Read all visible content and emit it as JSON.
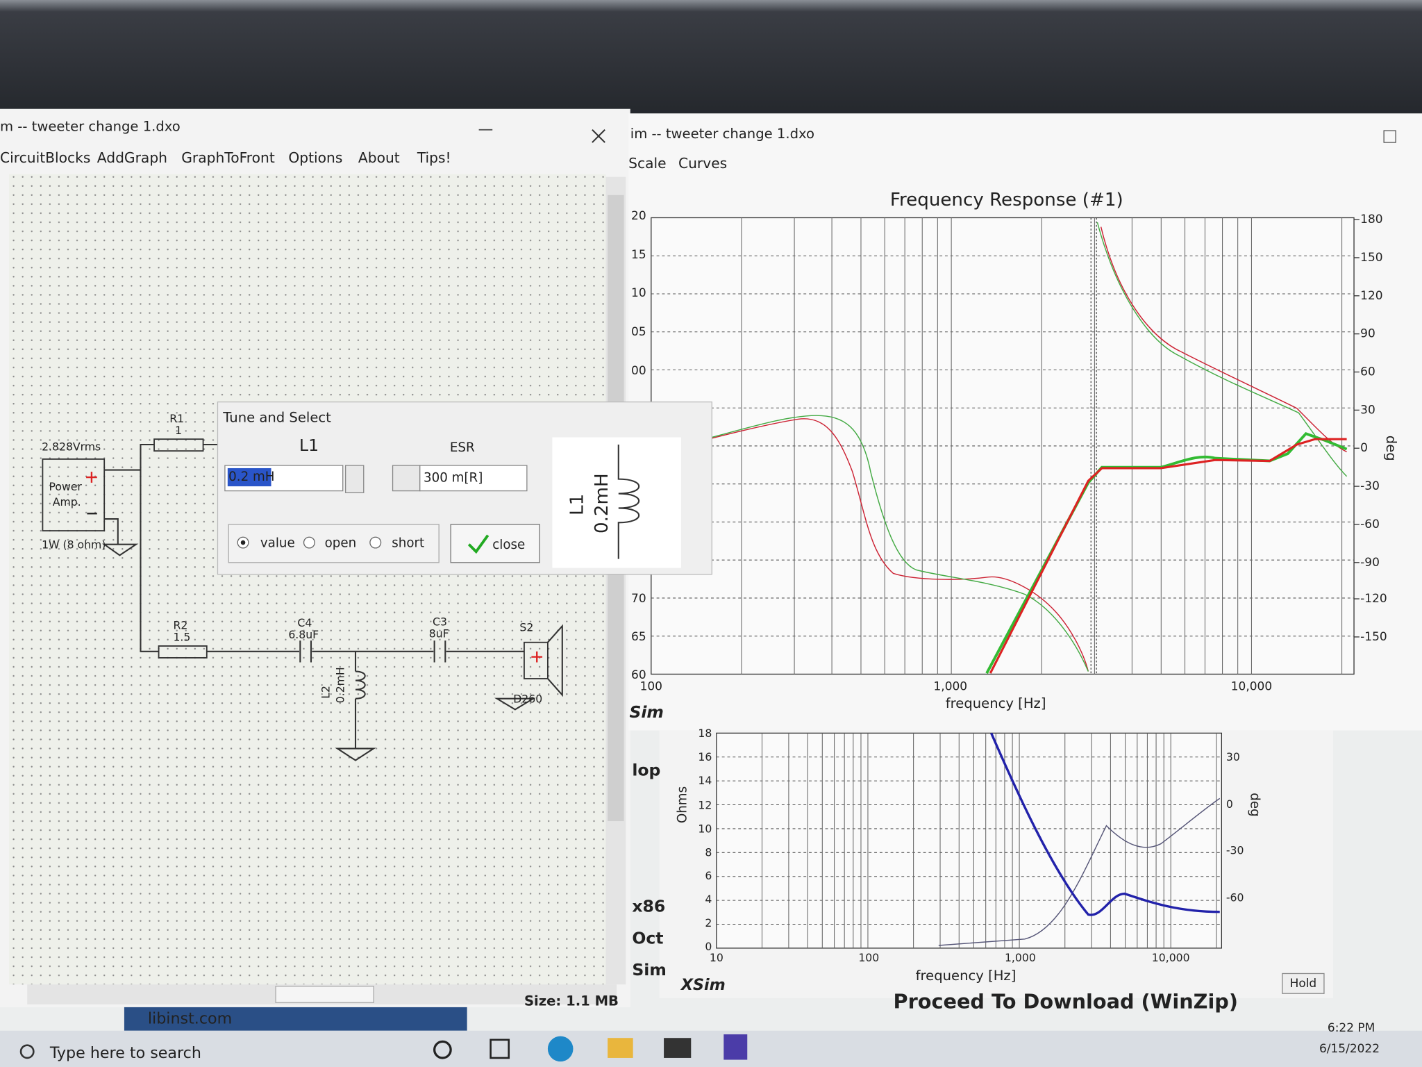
{
  "left_window": {
    "title": "m -- tweeter change 1.dxo",
    "menu": [
      "CircuitBlocks",
      "AddGraph",
      "GraphToFront",
      "Options",
      "About",
      "Tips!"
    ]
  },
  "schematic": {
    "source": {
      "voltage": "2.828Vrms",
      "label": [
        "Power",
        "Amp."
      ],
      "rating": "1W (8 ohm)"
    },
    "r1": {
      "name": "R1",
      "value": "1"
    },
    "r2": {
      "name": "R2",
      "value": "1.5"
    },
    "c4": {
      "name": "C4",
      "value": "6.8uF"
    },
    "c3": {
      "name": "C3",
      "value": "8uF"
    },
    "l2": {
      "name": "L2",
      "value": "0.2mH"
    },
    "s2": {
      "name": "S2",
      "model": "D260"
    }
  },
  "tune_dialog": {
    "title": "Tune and Select",
    "part": "L1",
    "esr_label": "ESR",
    "value_input": "0.2 mH",
    "esr_input": "300 m[R]",
    "options": [
      "value",
      "open",
      "short"
    ],
    "close": "close",
    "symbol": {
      "name": "L1",
      "value": "0.2mH"
    }
  },
  "right_window": {
    "title": "im -- tweeter change 1.dxo",
    "menu": [
      "Scale",
      "Curves"
    ],
    "status": "Sim"
  },
  "frequency_graph": {
    "title": "Frequency Response (#1)",
    "x_label": "frequency [Hz]",
    "x_ticks": [
      "100",
      "1,000",
      "10,000"
    ],
    "y_ticks": [
      "20",
      "15",
      "10",
      "05",
      "00",
      "70",
      "65",
      "60"
    ],
    "y2_ticks": [
      "180",
      "150",
      "120",
      "90",
      "60",
      "30",
      "0",
      "-30",
      "-60",
      "-90",
      "-120",
      "-150"
    ],
    "y2_label": "deg"
  },
  "impedance_graph": {
    "y_ticks": [
      "18",
      "16",
      "14",
      "12",
      "10",
      "8",
      "6",
      "4",
      "2",
      "0"
    ],
    "y_label": "Ohms",
    "y2_ticks": [
      "30",
      "0",
      "-30",
      "-60"
    ],
    "y2_label": "deg",
    "x_ticks": [
      "10",
      "100",
      "1,000",
      "10,000"
    ],
    "x_label": "frequency [Hz]",
    "brand": "XSim",
    "hold": "Hold"
  },
  "background": {
    "side_text": [
      "lop",
      "x86",
      "Oct",
      "Sim"
    ],
    "site": "libinst.com",
    "size": "Size: 1.1 MB",
    "download": "Proceed To Download (WinZip)"
  },
  "taskbar": {
    "search": "Type here to search",
    "time": "6:22 PM",
    "date": "6/15/2022"
  }
}
